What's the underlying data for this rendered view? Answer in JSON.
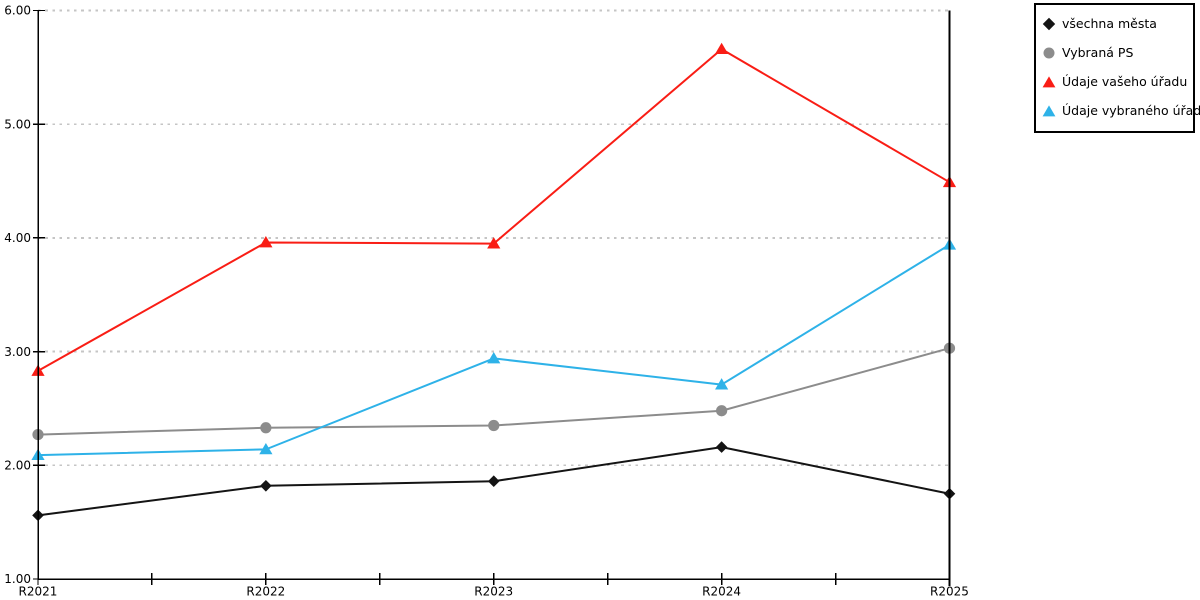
{
  "chart_data": {
    "type": "line",
    "title": "",
    "xlabel": "",
    "ylabel": "",
    "categories": [
      "R2021",
      "R2022",
      "R2023",
      "R2024",
      "R2025"
    ],
    "series": [
      {
        "name": "všechna města",
        "marker": "diamond",
        "color": "#141414",
        "values": [
          1.56,
          1.82,
          1.86,
          2.16,
          1.75
        ]
      },
      {
        "name": "Vybraná PS",
        "marker": "circle",
        "color": "#8c8c8c",
        "values": [
          2.27,
          2.33,
          2.35,
          2.48,
          3.03
        ]
      },
      {
        "name": "Údaje vašeho úřadu",
        "marker": "triangle",
        "color": "#f91d15",
        "values": [
          2.83,
          3.96,
          3.95,
          5.66,
          4.49
        ]
      },
      {
        "name": "Údaje vybraného úřadu",
        "marker": "triangle",
        "color": "#2eb2e8",
        "values": [
          2.09,
          2.14,
          2.94,
          2.71,
          3.94
        ]
      }
    ],
    "ylim": [
      1,
      6
    ],
    "ytick_labels": [
      "1.00",
      "2.00",
      "3.00",
      "4.00",
      "5.00",
      "6.00"
    ],
    "x_minor_ticks": "midpoints",
    "grid": "horizontal-dotted",
    "legend_position": "top-right-outside"
  },
  "colors": {
    "background": "#ffffff",
    "axis": "#000000",
    "gridline": "#c5c5c5",
    "legend_border": "#000000",
    "text": "#000000"
  }
}
